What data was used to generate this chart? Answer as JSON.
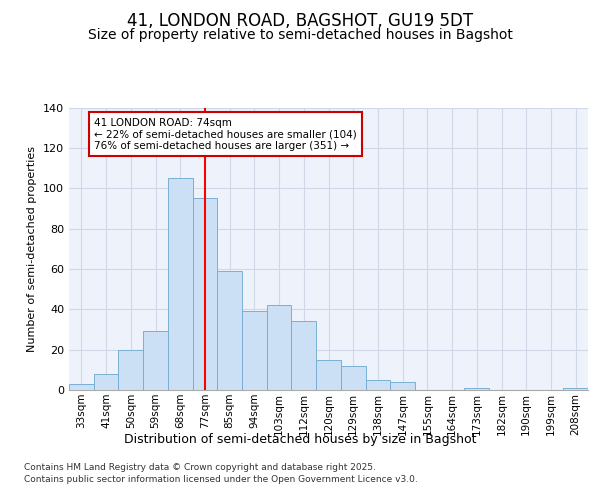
{
  "title": "41, LONDON ROAD, BAGSHOT, GU19 5DT",
  "subtitle": "Size of property relative to semi-detached houses in Bagshot",
  "xlabel": "Distribution of semi-detached houses by size in Bagshot",
  "ylabel": "Number of semi-detached properties",
  "categories": [
    "33sqm",
    "41sqm",
    "50sqm",
    "59sqm",
    "68sqm",
    "77sqm",
    "85sqm",
    "94sqm",
    "103sqm",
    "112sqm",
    "120sqm",
    "129sqm",
    "138sqm",
    "147sqm",
    "155sqm",
    "164sqm",
    "173sqm",
    "182sqm",
    "190sqm",
    "199sqm",
    "208sqm"
  ],
  "values": [
    3,
    8,
    20,
    29,
    105,
    95,
    59,
    39,
    42,
    34,
    15,
    12,
    5,
    4,
    0,
    0,
    1,
    0,
    0,
    0,
    1
  ],
  "bar_color": "#cce0f5",
  "bar_edge_color": "#7aafd4",
  "grid_color": "#d0d8e8",
  "plot_bg_color": "#eef3fb",
  "fig_bg_color": "#ffffff",
  "red_line_x": 5,
  "annotation_text": "41 LONDON ROAD: 74sqm\n← 22% of semi-detached houses are smaller (104)\n76% of semi-detached houses are larger (351) →",
  "annotation_box_color": "#cc0000",
  "ylim": [
    0,
    140
  ],
  "yticks": [
    0,
    20,
    40,
    60,
    80,
    100,
    120,
    140
  ],
  "footer_line1": "Contains HM Land Registry data © Crown copyright and database right 2025.",
  "footer_line2": "Contains public sector information licensed under the Open Government Licence v3.0.",
  "title_fontsize": 12,
  "subtitle_fontsize": 10,
  "tick_fontsize": 7.5,
  "ylabel_fontsize": 8,
  "xlabel_fontsize": 9,
  "annotation_fontsize": 7.5,
  "footer_fontsize": 6.5
}
